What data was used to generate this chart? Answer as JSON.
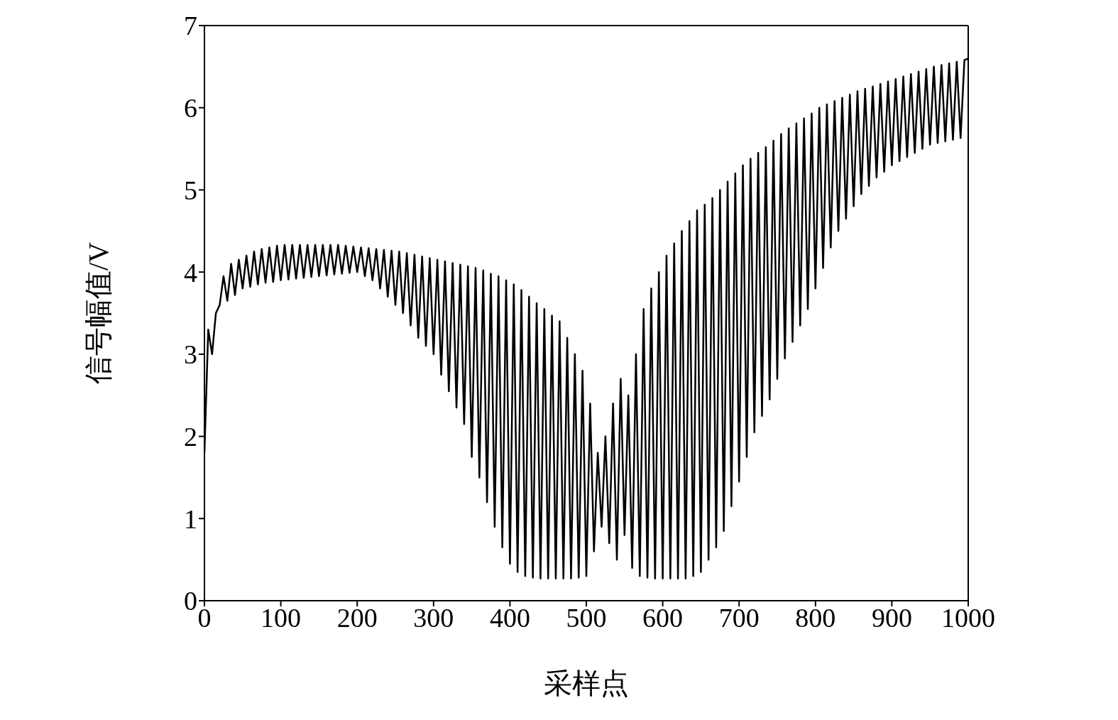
{
  "chart_data": {
    "type": "line",
    "xlabel": "采样点",
    "ylabel": "信号幅值/V",
    "xlim": [
      0,
      1000
    ],
    "ylim": [
      0,
      7
    ],
    "xticks": [
      0,
      100,
      200,
      300,
      400,
      500,
      600,
      700,
      800,
      900,
      1000
    ],
    "yticks": [
      0,
      1,
      2,
      3,
      4,
      5,
      6,
      7
    ],
    "legend": false,
    "marker": "none",
    "line_style": "solid",
    "series": [
      {
        "color": "#000000",
        "x": [
          0,
          5,
          10,
          15,
          20,
          25,
          30,
          35,
          40,
          45,
          50,
          55,
          60,
          65,
          70,
          75,
          80,
          85,
          90,
          95,
          100,
          105,
          110,
          115,
          120,
          125,
          130,
          135,
          140,
          145,
          150,
          155,
          160,
          165,
          170,
          175,
          180,
          185,
          190,
          195,
          200,
          205,
          210,
          215,
          220,
          225,
          230,
          235,
          240,
          245,
          250,
          255,
          260,
          265,
          270,
          275,
          280,
          285,
          290,
          295,
          300,
          305,
          310,
          315,
          320,
          325,
          330,
          335,
          340,
          345,
          350,
          355,
          360,
          365,
          370,
          375,
          380,
          385,
          390,
          395,
          400,
          405,
          410,
          415,
          420,
          425,
          430,
          435,
          440,
          445,
          450,
          455,
          460,
          465,
          470,
          475,
          480,
          485,
          490,
          495,
          500,
          505,
          510,
          515,
          520,
          525,
          530,
          535,
          540,
          545,
          550,
          555,
          560,
          565,
          570,
          575,
          580,
          585,
          590,
          595,
          600,
          605,
          610,
          615,
          620,
          625,
          630,
          635,
          640,
          645,
          650,
          655,
          660,
          665,
          670,
          675,
          680,
          685,
          690,
          695,
          700,
          705,
          710,
          715,
          720,
          725,
          730,
          735,
          740,
          745,
          750,
          755,
          760,
          765,
          770,
          775,
          780,
          785,
          790,
          795,
          800,
          805,
          810,
          815,
          820,
          825,
          830,
          835,
          840,
          845,
          850,
          855,
          860,
          865,
          870,
          875,
          880,
          885,
          890,
          895,
          900,
          905,
          910,
          915,
          920,
          925,
          930,
          935,
          940,
          945,
          950,
          955,
          960,
          965,
          970,
          975,
          980,
          985,
          990,
          995,
          1000
        ],
        "values": [
          1.8,
          3.3,
          3.0,
          3.5,
          3.6,
          3.95,
          3.65,
          4.1,
          3.72,
          4.15,
          3.8,
          4.2,
          3.82,
          4.25,
          3.85,
          4.28,
          3.87,
          4.3,
          3.88,
          4.32,
          3.9,
          4.33,
          3.91,
          4.33,
          3.92,
          4.33,
          3.93,
          4.33,
          3.94,
          4.33,
          3.95,
          4.33,
          3.96,
          4.33,
          3.97,
          4.33,
          3.98,
          4.32,
          3.99,
          4.31,
          4.0,
          4.3,
          3.95,
          4.29,
          3.9,
          4.28,
          3.8,
          4.27,
          3.7,
          4.26,
          3.6,
          4.25,
          3.5,
          4.23,
          3.35,
          4.21,
          3.2,
          4.19,
          3.1,
          4.17,
          3.0,
          4.15,
          2.75,
          4.13,
          2.55,
          4.11,
          2.35,
          4.09,
          2.15,
          4.07,
          1.75,
          4.05,
          1.5,
          4.02,
          1.2,
          3.98,
          0.9,
          3.95,
          0.65,
          3.9,
          0.45,
          3.85,
          0.35,
          3.78,
          0.3,
          3.7,
          0.28,
          3.62,
          0.27,
          3.55,
          0.27,
          3.47,
          0.27,
          3.4,
          0.27,
          3.2,
          0.27,
          3.0,
          0.28,
          2.8,
          0.3,
          2.4,
          0.6,
          1.8,
          0.9,
          2.0,
          0.7,
          2.4,
          0.5,
          2.7,
          0.8,
          2.5,
          0.4,
          3.0,
          0.3,
          3.55,
          0.28,
          3.8,
          0.27,
          4.0,
          0.27,
          4.2,
          0.27,
          4.35,
          0.27,
          4.5,
          0.27,
          4.62,
          0.3,
          4.75,
          0.35,
          4.82,
          0.5,
          4.9,
          0.65,
          5.0,
          0.85,
          5.1,
          1.15,
          5.2,
          1.45,
          5.3,
          1.75,
          5.38,
          2.05,
          5.45,
          2.25,
          5.52,
          2.45,
          5.6,
          2.7,
          5.68,
          2.95,
          5.75,
          3.15,
          5.81,
          3.35,
          5.87,
          3.55,
          5.93,
          3.8,
          6.0,
          4.05,
          6.04,
          4.3,
          6.08,
          4.5,
          6.12,
          4.65,
          6.16,
          4.8,
          6.2,
          4.95,
          6.23,
          5.05,
          6.26,
          5.15,
          6.29,
          5.22,
          6.32,
          5.3,
          6.35,
          5.35,
          6.38,
          5.4,
          6.41,
          5.45,
          6.44,
          5.5,
          6.47,
          5.55,
          6.5,
          5.57,
          6.52,
          5.59,
          6.54,
          5.61,
          6.56,
          5.63,
          6.58,
          6.6
        ]
      }
    ]
  }
}
